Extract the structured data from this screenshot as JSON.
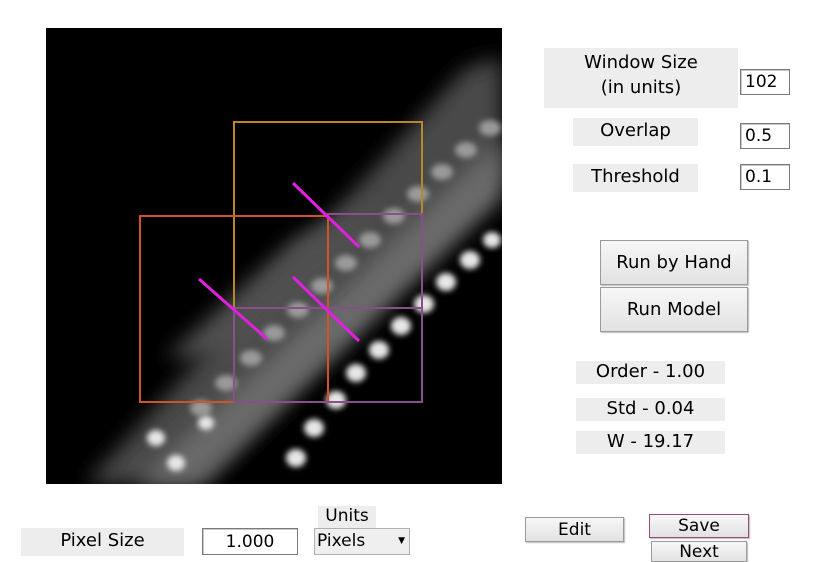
{
  "params": {
    "window_size_label": "Window Size\n(in units)",
    "window_size_value": "102",
    "overlap_label": "Overlap",
    "overlap_value": "0.5",
    "threshold_label": "Threshold",
    "threshold_value": "0.1"
  },
  "actions": {
    "run_by_hand": "Run by Hand",
    "run_model": "Run Model"
  },
  "results": {
    "order": "Order - 1.00",
    "std": "Std - 0.04",
    "w": "W - 19.17"
  },
  "bottom": {
    "pixel_size_label": "Pixel Size",
    "pixel_size_value": "1.000",
    "units_label": "Units",
    "units_selected": "Pixels",
    "edit": "Edit",
    "save": "Save",
    "next": "Next"
  },
  "colors": {
    "box_gold": "#b8862c",
    "box_orange": "#d0542a",
    "box_purple": "#8a4f8a",
    "orientation_line": "#e020e0"
  }
}
